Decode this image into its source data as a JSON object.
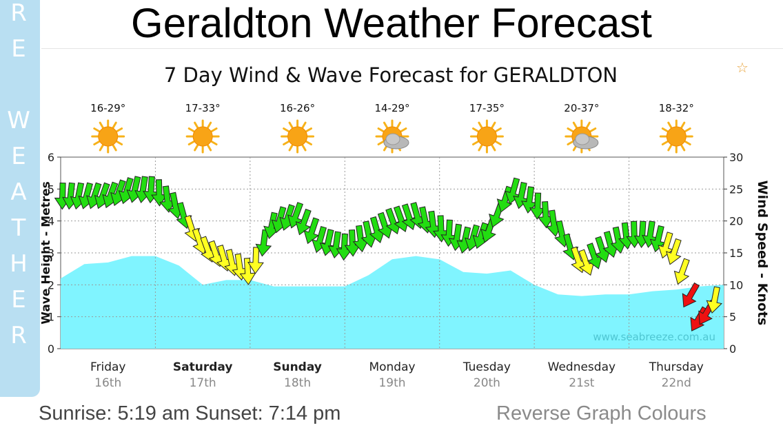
{
  "page": {
    "title": "Geraldton Weather Forecast",
    "side_tab_letters": [
      "R",
      "E",
      "",
      "W",
      "E",
      "A",
      "T",
      "H",
      "E",
      "R"
    ],
    "favorite_icon": "star-outline-icon",
    "sunrise_sunset": "Sunrise: 5:19 am  Sunset: 7:14 pm",
    "reverse_link": "Reverse Graph Colours"
  },
  "chart_data": {
    "type": "area",
    "title": "7 Day Wind & Wave Forecast for GERALDTON",
    "ylabel": "Wave Height - Metres",
    "y2label": "Wind Speed - Knots",
    "ylim": [
      0,
      6
    ],
    "y2lim": [
      0,
      30
    ],
    "yticks": [
      "0",
      "1",
      "2",
      "3",
      "4",
      "5",
      "6"
    ],
    "y2ticks": [
      "0",
      "5",
      "10",
      "15",
      "20",
      "25",
      "30"
    ],
    "watermark": "www.seabreeze.com.au",
    "days": [
      {
        "day": "Friday",
        "date": "16th",
        "temp": "16-29°",
        "icon": "sun-icon",
        "bold": false
      },
      {
        "day": "Saturday",
        "date": "17th",
        "temp": "17-33°",
        "icon": "sun-icon",
        "bold": true
      },
      {
        "day": "Sunday",
        "date": "18th",
        "temp": "16-26°",
        "icon": "sun-icon",
        "bold": true
      },
      {
        "day": "Monday",
        "date": "19th",
        "temp": "14-29°",
        "icon": "partly-cloudy-icon",
        "bold": false
      },
      {
        "day": "Tuesday",
        "date": "20th",
        "temp": "17-35°",
        "icon": "sun-icon",
        "bold": false
      },
      {
        "day": "Wednesday",
        "date": "21st",
        "temp": "20-37°",
        "icon": "partly-cloudy-icon",
        "bold": false
      },
      {
        "day": "Thursday",
        "date": "22nd",
        "temp": "18-32°",
        "icon": "sun-icon",
        "bold": false
      }
    ],
    "wave_series": {
      "name": "Wave Height",
      "color": "#80f4ff",
      "x": [
        0,
        0.25,
        0.5,
        0.75,
        1,
        1.25,
        1.5,
        1.75,
        2,
        2.25,
        2.5,
        2.75,
        3,
        3.25,
        3.5,
        3.75,
        4,
        4.25,
        4.5,
        4.75,
        5,
        5.25,
        5.5,
        5.75,
        6,
        6.25,
        6.5,
        6.75,
        7
      ],
      "values": [
        2.2,
        2.65,
        2.7,
        2.9,
        2.9,
        2.6,
        2.0,
        2.15,
        2.15,
        1.95,
        1.95,
        1.95,
        1.95,
        2.3,
        2.8,
        2.9,
        2.8,
        2.4,
        2.35,
        2.45,
        2.0,
        1.7,
        1.65,
        1.7,
        1.7,
        1.8,
        1.85,
        1.95,
        2.0
      ]
    },
    "wind_series": {
      "name": "Wind Speed",
      "colors": {
        "light": "#ffff22",
        "moderate": "#22dd11",
        "strong": "#ee1111"
      },
      "x": [
        0,
        0.25,
        0.5,
        0.75,
        1,
        1.25,
        1.5,
        1.75,
        2,
        2.25,
        2.5,
        2.75,
        3,
        3.25,
        3.5,
        3.75,
        4,
        4.25,
        4.5,
        4.75,
        5,
        5.25,
        5.5,
        5.75,
        6,
        6.25,
        6.5,
        6.75,
        7
      ],
      "values": [
        24,
        24,
        24,
        25,
        25,
        22,
        16,
        14,
        12,
        20,
        21,
        17,
        16,
        18,
        20,
        21,
        19,
        17,
        18,
        25,
        23,
        19,
        13,
        16,
        18,
        18,
        15,
        4,
        10
      ],
      "strength": [
        "moderate",
        "moderate",
        "moderate",
        "moderate",
        "moderate",
        "moderate",
        "light",
        "light",
        "light",
        "moderate",
        "moderate",
        "moderate",
        "moderate",
        "moderate",
        "moderate",
        "moderate",
        "moderate",
        "moderate",
        "moderate",
        "moderate",
        "moderate",
        "moderate",
        "light",
        "moderate",
        "moderate",
        "moderate",
        "light",
        "strong",
        "light"
      ]
    }
  }
}
